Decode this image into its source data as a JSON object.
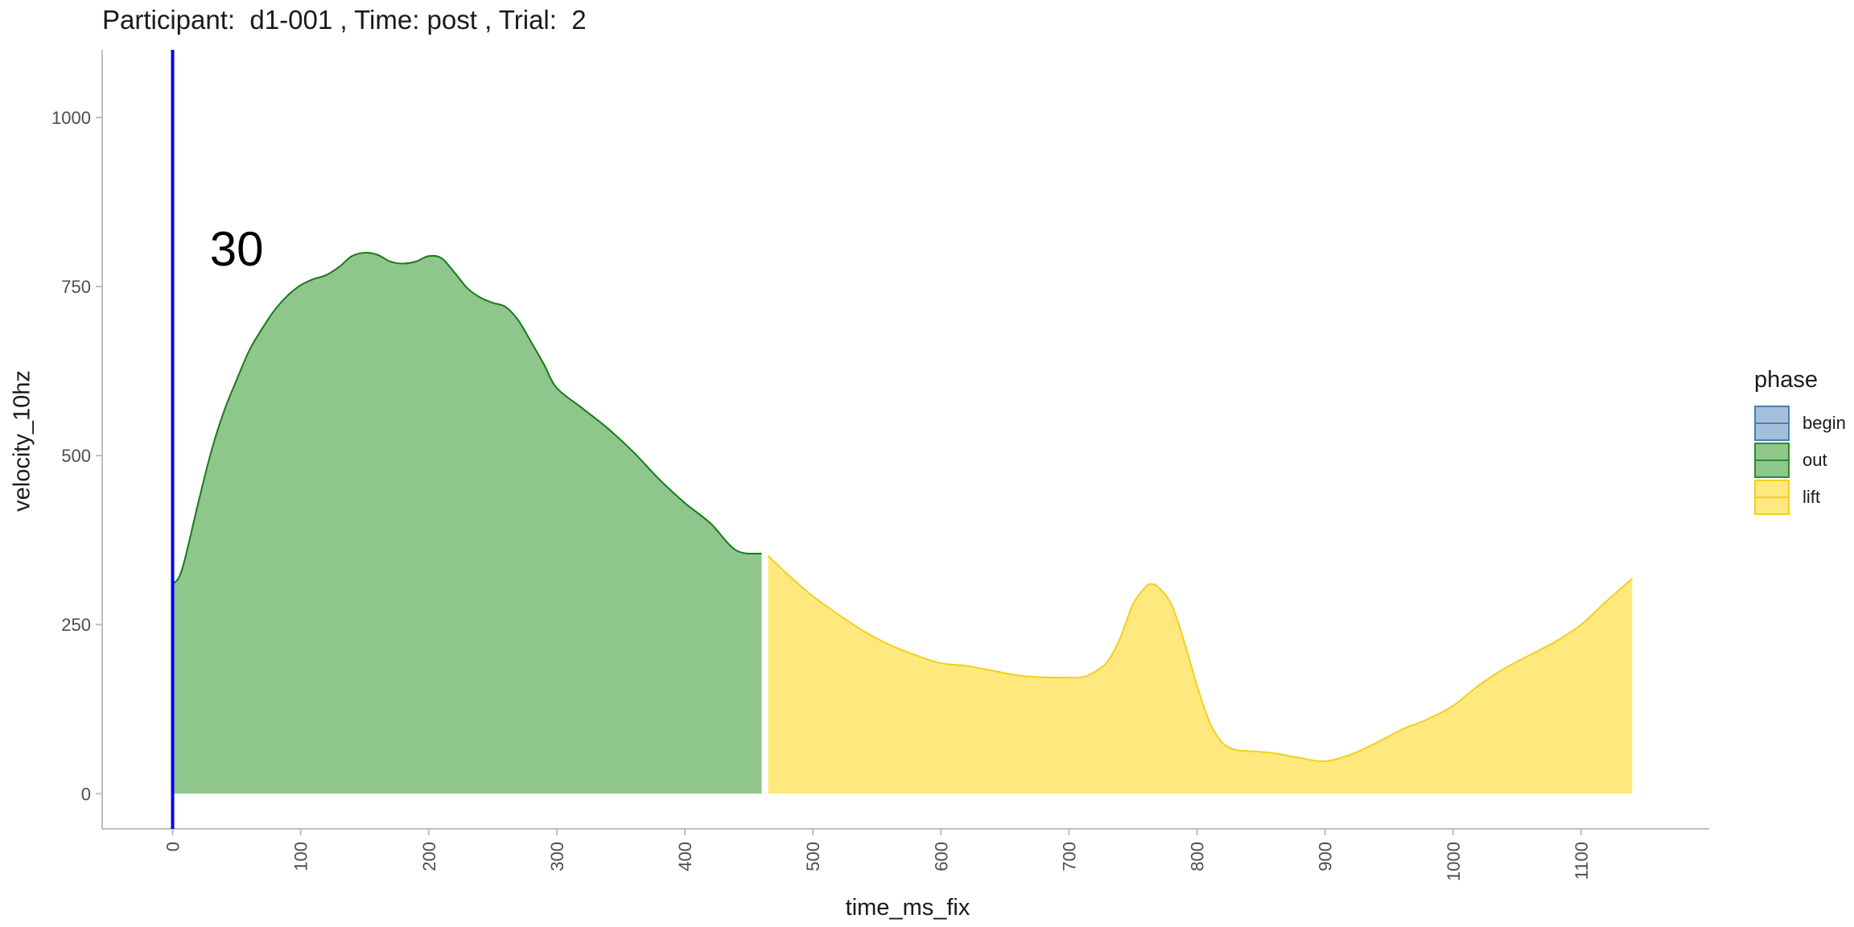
{
  "chart_data": {
    "type": "area",
    "title": "Participant:  d1-001 , Time: post , Trial:  2",
    "xlabel": "time_ms_fix",
    "ylabel": "velocity_10hz",
    "xlim": [
      -55,
      1200
    ],
    "ylim": [
      -52,
      1100
    ],
    "x_ticks": [
      0,
      100,
      200,
      300,
      400,
      500,
      600,
      700,
      800,
      900,
      1000,
      1100
    ],
    "y_ticks": [
      0,
      250,
      500,
      750,
      1000
    ],
    "grid": false,
    "legend": {
      "title": "phase",
      "placement": "right",
      "entries": [
        {
          "label": "begin",
          "fill": "#a4bfdc",
          "stroke": "#4a7fb8"
        },
        {
          "label": "out",
          "fill": "#8fc68c",
          "stroke": "#2e8b2e"
        },
        {
          "label": "lift",
          "fill": "#ffe97f",
          "stroke": "#f2cf1e"
        }
      ]
    },
    "vline": {
      "x": 0,
      "color": "#0000ee"
    },
    "annotation": {
      "text": "30",
      "x": 50,
      "y": 800
    },
    "series": [
      {
        "name": "out",
        "fill": "#8fc68c",
        "stroke": "#177a17",
        "x": [
          0,
          5,
          10,
          20,
          30,
          40,
          50,
          60,
          70,
          80,
          90,
          100,
          110,
          120,
          130,
          140,
          150,
          160,
          170,
          180,
          190,
          200,
          210,
          220,
          230,
          240,
          250,
          260,
          270,
          280,
          290,
          300,
          320,
          340,
          360,
          380,
          400,
          420,
          440,
          460
        ],
        "y": [
          310,
          320,
          350,
          430,
          505,
          565,
          612,
          656,
          688,
          716,
          737,
          752,
          761,
          767,
          779,
          795,
          800,
          797,
          787,
          784,
          787,
          795,
          792,
          771,
          748,
          734,
          726,
          720,
          700,
          668,
          635,
          600,
          570,
          540,
          505,
          465,
          430,
          400,
          360,
          355
        ]
      },
      {
        "name": "lift",
        "fill": "#ffe97f",
        "stroke": "#f2cf1e",
        "x": [
          465,
          480,
          500,
          520,
          540,
          560,
          580,
          600,
          620,
          640,
          660,
          680,
          700,
          710,
          720,
          730,
          740,
          750,
          760,
          765,
          770,
          780,
          790,
          800,
          810,
          820,
          830,
          840,
          860,
          880,
          900,
          920,
          940,
          960,
          980,
          1000,
          1020,
          1040,
          1060,
          1080,
          1100,
          1120,
          1140
        ],
        "y": [
          352,
          325,
          292,
          265,
          240,
          220,
          205,
          193,
          189,
          182,
          175,
          172,
          172,
          172,
          180,
          195,
          230,
          280,
          306,
          310,
          305,
          280,
          225,
          160,
          105,
          75,
          65,
          63,
          60,
          53,
          48,
          58,
          75,
          95,
          110,
          130,
          160,
          185,
          205,
          225,
          250,
          285,
          318
        ]
      }
    ]
  }
}
